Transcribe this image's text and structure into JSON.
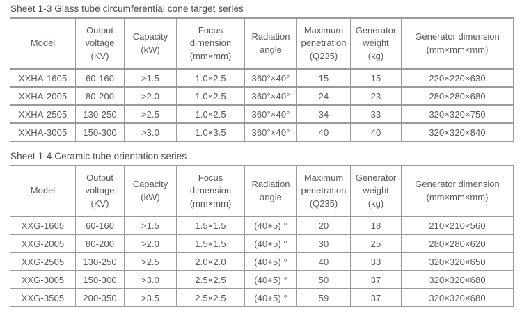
{
  "page": {
    "background": "#ffffff",
    "text_color": "#595959",
    "title_color": "#4a4a4a",
    "border_color": "#9a9a9a"
  },
  "tables": [
    {
      "title": "Sheet 1-3 Glass tube circumferential cone target series",
      "headers": [
        "Model",
        "Output\nvoltage\n(KV)",
        "Capacity\n(kW)",
        "Focus\ndimension\n(mm×mm)",
        "Radiation\nangle",
        "Maximum\npenetration\n(Q235)",
        "Generator\nweight\n(kg)",
        "Generator dimension\n(mm×mm×mm)"
      ],
      "rows": [
        [
          "XXHA-1605",
          "60-160",
          ">1.5",
          "1.0×2.5",
          "360°×40°",
          "15",
          "15",
          "220×220×630"
        ],
        [
          "XXHA-2005",
          "80-200",
          ">2.0",
          "1.0×2.5",
          "360°×40°",
          "24",
          "23",
          "280×280×680"
        ],
        [
          "XXHA-2505",
          "130-250",
          ">2.5",
          "1.0×2.5",
          "360°×40°",
          "34",
          "33",
          "320×320×750"
        ],
        [
          "XXHA-3005",
          "150-300",
          ">3.0",
          "1.0×3.5",
          "360°×40°",
          "40",
          "40",
          "320×320×840"
        ]
      ]
    },
    {
      "title": "Sheet 1-4 Ceramic tube orientation series",
      "headers": [
        "Model",
        "Output\nvoltage\n(KV)",
        "Capacity\n(kW)",
        "Focus\ndimension\n(mm×mm)",
        "Radiation\nangle",
        "Maximum\npenetration\n(Q235)",
        "Generator\nweight\n(kg)",
        "Generator dimension\n(mm×mm×mm)"
      ],
      "rows": [
        [
          "XXG-1605",
          "60-160",
          ">1.5",
          "1.5×1.5",
          "(40+5) °",
          "20",
          "18",
          "210×210×560"
        ],
        [
          "XXG-2005",
          "80-200",
          ">2.0",
          "1.5×1.5",
          "(40+5) °",
          "30",
          "25",
          "280×280×620"
        ],
        [
          "XXG-2505",
          "130-250",
          ">2.5",
          "2.0×2.0",
          "(40+5) °",
          "40",
          "33",
          "320×320×650"
        ],
        [
          "XXG-3005",
          "150-300",
          ">3.0",
          "2.5×2.5",
          "(40+5) °",
          "50",
          "37",
          "320×320×680"
        ],
        [
          "XXG-3505",
          "200-350",
          ">3.5",
          "2.5×2.5",
          "(40+5) °",
          "59",
          "37",
          "320×320×680"
        ]
      ]
    }
  ]
}
